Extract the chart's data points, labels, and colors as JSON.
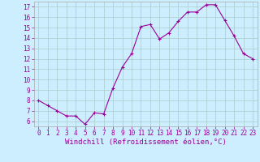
{
  "x": [
    0,
    1,
    2,
    3,
    4,
    5,
    6,
    7,
    8,
    9,
    10,
    11,
    12,
    13,
    14,
    15,
    16,
    17,
    18,
    19,
    20,
    21,
    22,
    23
  ],
  "y": [
    8.0,
    7.5,
    7.0,
    6.5,
    6.5,
    5.7,
    6.8,
    6.7,
    9.2,
    11.2,
    12.5,
    15.1,
    15.3,
    13.9,
    14.5,
    15.6,
    16.5,
    16.5,
    17.2,
    17.2,
    15.7,
    14.2,
    12.5,
    12.0
  ],
  "line_color": "#990099",
  "marker": "+",
  "marker_size": 3,
  "marker_lw": 0.8,
  "bg_color": "#cceeff",
  "grid_color": "#aacccc",
  "xlabel": "Windchill (Refroidissement éolien,°C)",
  "xlabel_color": "#990099",
  "xlabel_fontsize": 6.5,
  "xlim": [
    -0.5,
    23.5
  ],
  "ylim": [
    5.5,
    17.5
  ],
  "yticks": [
    6,
    7,
    8,
    9,
    10,
    11,
    12,
    13,
    14,
    15,
    16,
    17
  ],
  "xticks": [
    0,
    1,
    2,
    3,
    4,
    5,
    6,
    7,
    8,
    9,
    10,
    11,
    12,
    13,
    14,
    15,
    16,
    17,
    18,
    19,
    20,
    21,
    22,
    23
  ],
  "tick_fontsize": 5.5,
  "line_width": 0.8
}
